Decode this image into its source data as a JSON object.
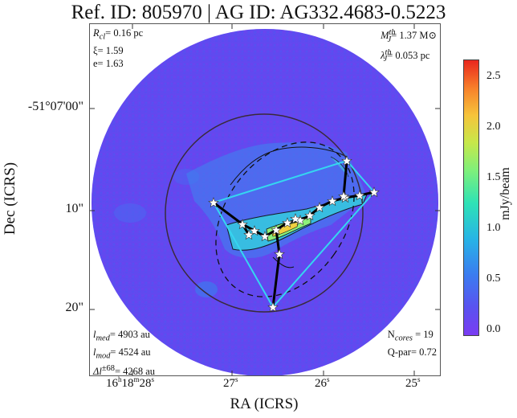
{
  "title": "Ref. ID: 805970 | AG ID: AG332.4683-0.5223",
  "top_left": {
    "r_cl": "R",
    "r_cl_sub": "cl",
    "r_cl_val": "= 0.16 pc",
    "xi": "ξ= 1.59",
    "e": "e= 1.63"
  },
  "top_right": {
    "mass": "M",
    "mass_sup": "th",
    "mass_sub": "J",
    "mass_val": "= 1.37 M⊙",
    "lambda": "λ",
    "lambda_sup": "th",
    "lambda_sub": "J",
    "lambda_val": "= 0.053 pc"
  },
  "bottom_left": {
    "l_med": "l",
    "l_med_sub": "med",
    "l_med_val": "= 4903 au",
    "l_mod": "l",
    "l_mod_sub": "mod",
    "l_mod_val": "= 4524 au",
    "dl": "Δl",
    "dl_sup": "±68",
    "dl_val": "= 4268 au"
  },
  "bottom_right": {
    "ncores": "N",
    "ncores_sub": "cores",
    "ncores_val": " = 19",
    "qpar": "Q-par= 0.72"
  },
  "axes": {
    "ylabel": "Dec (ICRS)",
    "xlabel": "RA (ICRS)",
    "yticks": [
      "-51°07'00\"",
      "10\"",
      "20\""
    ],
    "xticks": [
      {
        "h": "16",
        "hu": "h",
        "m": "18",
        "mu": "m",
        "s": "28",
        "su": "s"
      },
      {
        "s": "27",
        "su": "s"
      },
      {
        "s": "26",
        "su": "s"
      },
      {
        "s": "25",
        "su": "s"
      }
    ]
  },
  "colorbar": {
    "label": "mJy/beam",
    "ticks": [
      "2.5",
      "2.0",
      "1.5",
      "1.0",
      "0.5",
      "0.0"
    ],
    "range": [
      0.0,
      2.7
    ]
  },
  "cores_count": 19
}
